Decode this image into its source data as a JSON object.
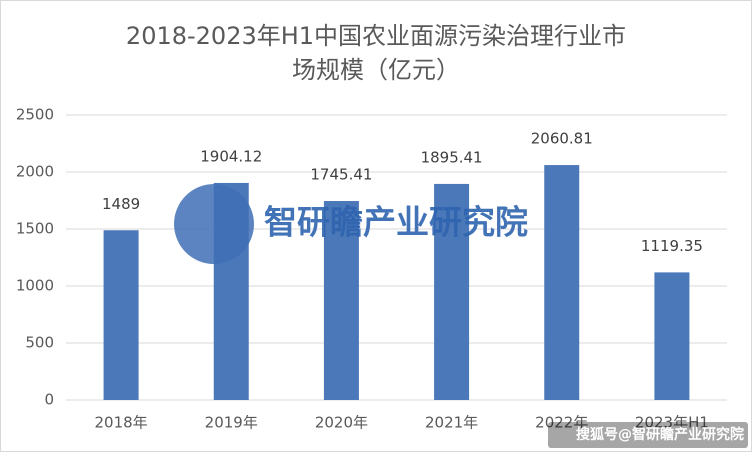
{
  "chart_data": {
    "type": "bar",
    "title": [
      "2018-2023年H1中国农业面源污染治理行业市",
      "场规模（亿元）"
    ],
    "categories": [
      "2018年",
      "2019年",
      "2020年",
      "2021年",
      "2022年",
      "2023年H1"
    ],
    "values": [
      1489,
      1904.12,
      1745.41,
      1895.41,
      2060.81,
      1119.35
    ],
    "color": "#4a78b8",
    "ylim": [
      0,
      2500
    ],
    "yticks": [
      0,
      500,
      1000,
      1500,
      2000,
      2500
    ],
    "grid": true,
    "watermark": "智研瞻产业研究院",
    "source_mark": "搜狐号@智研瞻产业研究院"
  }
}
